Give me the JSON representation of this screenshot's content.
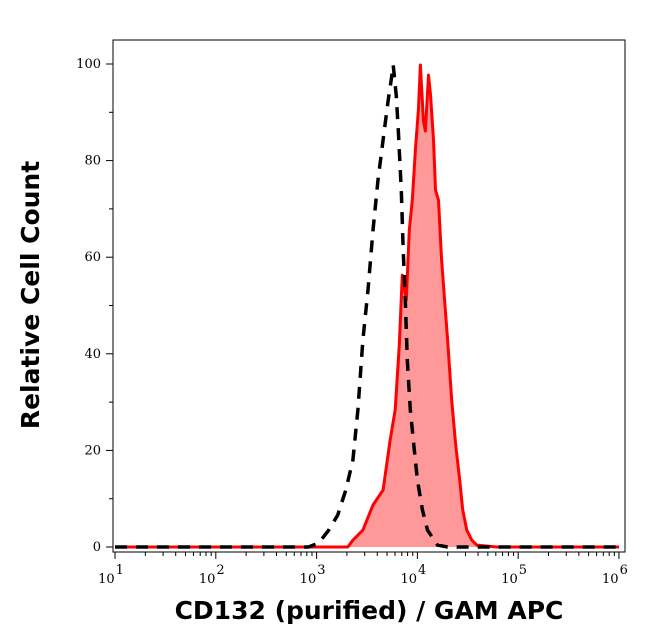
{
  "chart_data": {
    "type": "area",
    "title": "",
    "xlabel": "CD132 (purified) / GAM APC",
    "ylabel": "Relative Cell Count",
    "x_scale": "log",
    "xlim": [
      10,
      1000000
    ],
    "ylim": [
      -1,
      105
    ],
    "x_ticks": [
      {
        "base": "10",
        "exp": "1",
        "value": 10
      },
      {
        "base": "10",
        "exp": "2",
        "value": 100
      },
      {
        "base": "10",
        "exp": "3",
        "value": 1000
      },
      {
        "base": "10",
        "exp": "4",
        "value": 10000
      },
      {
        "base": "10",
        "exp": "5",
        "value": 100000
      },
      {
        "base": "10",
        "exp": "6",
        "value": 1000000
      }
    ],
    "y_ticks": [
      "0",
      "20",
      "40",
      "60",
      "80",
      "100"
    ],
    "grid": false,
    "legend": "none",
    "series": [
      {
        "style": "dashed-line",
        "color": "#000000",
        "x": [
          10,
          832,
          1050,
          1320,
          1620,
          1950,
          2290,
          2570,
          2880,
          3240,
          3630,
          4070,
          4570,
          5130,
          5500,
          5750,
          6170,
          6460,
          6920,
          7240,
          7590,
          7940,
          8510,
          9330,
          10000,
          11220,
          12590,
          15850,
          19950,
          1000000
        ],
        "y": [
          0,
          0,
          0.8,
          3.5,
          6.6,
          11.8,
          18.0,
          28.4,
          42.9,
          53.2,
          65.6,
          76.0,
          84.3,
          92.5,
          96.7,
          99.8,
          93.6,
          86.3,
          73.9,
          61.5,
          51.1,
          38.7,
          28.4,
          20.1,
          13.9,
          7.7,
          3.5,
          0.4,
          0,
          0
        ]
      },
      {
        "style": "filled",
        "color": "#ff0000",
        "fill": "#ff9999",
        "x": [
          10,
          2040,
          2290,
          2880,
          3630,
          4570,
          5370,
          6030,
          6610,
          7080,
          7760,
          8320,
          8910,
          9550,
          10230,
          10720,
          11480,
          12020,
          12880,
          13490,
          14450,
          15140,
          16220,
          17380,
          18620,
          19950,
          21880,
          23990,
          26300,
          28180,
          30900,
          34670,
          38900,
          61660,
          97720,
          1000000
        ],
        "y": [
          0,
          0,
          1.4,
          3.5,
          8.7,
          11.8,
          22.2,
          28.4,
          41.8,
          56.3,
          51.1,
          65.6,
          71.8,
          82.2,
          90.5,
          99.8,
          88.2,
          86.1,
          97.7,
          93.6,
          84.3,
          73.9,
          71.8,
          59.4,
          51.1,
          42.9,
          30.4,
          21.1,
          13.9,
          7.7,
          3.5,
          1.4,
          0.4,
          0,
          0,
          0
        ]
      }
    ]
  }
}
